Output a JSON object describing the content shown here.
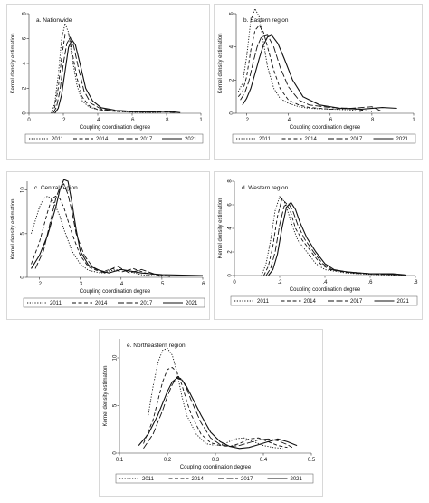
{
  "legend_labels": [
    "2011",
    "2014",
    "2017",
    "2021"
  ],
  "x_label": "Coupling coordination degree",
  "y_label": "Kernel density estimation",
  "chart_data": [
    {
      "type": "line",
      "title": "a. Nationwide",
      "xlabel": "Coupling coordination degree",
      "ylabel": "Kernel density estimation",
      "xlim": [
        0,
        1
      ],
      "ylim": [
        0,
        8
      ],
      "xticks": [
        "0",
        ".2",
        ".4",
        ".6",
        ".8",
        "1"
      ],
      "yticks": [
        "0",
        "2",
        "4",
        "6",
        "8"
      ],
      "legend": "bottom",
      "series": [
        {
          "name": "2011",
          "x": [
            0.13,
            0.15,
            0.17,
            0.19,
            0.21,
            0.23,
            0.25,
            0.28,
            0.31,
            0.35,
            0.4,
            0.5,
            0.6,
            0.7,
            0.8,
            0.85
          ],
          "y": [
            0,
            0.8,
            3,
            6,
            7.2,
            6.5,
            4.5,
            2.2,
            1,
            0.5,
            0.3,
            0.15,
            0.08,
            0.05,
            0.1,
            0.05
          ]
        },
        {
          "name": "2014",
          "x": [
            0.13,
            0.15,
            0.17,
            0.19,
            0.21,
            0.23,
            0.25,
            0.28,
            0.31,
            0.35,
            0.4,
            0.5,
            0.6,
            0.7,
            0.8,
            0.85
          ],
          "y": [
            0,
            0.5,
            2,
            4.5,
            6.3,
            6.4,
            5,
            2.8,
            1.3,
            0.6,
            0.3,
            0.15,
            0.1,
            0.08,
            0.1,
            0.05
          ]
        },
        {
          "name": "2017",
          "x": [
            0.14,
            0.16,
            0.18,
            0.2,
            0.22,
            0.24,
            0.26,
            0.29,
            0.32,
            0.36,
            0.42,
            0.5,
            0.6,
            0.7,
            0.8,
            0.85
          ],
          "y": [
            0,
            0.5,
            1.8,
            4,
            5.6,
            6.1,
            5.4,
            3.5,
            1.8,
            0.8,
            0.35,
            0.2,
            0.12,
            0.1,
            0.15,
            0.05
          ]
        },
        {
          "name": "2021",
          "x": [
            0.15,
            0.17,
            0.19,
            0.21,
            0.23,
            0.25,
            0.27,
            0.3,
            0.33,
            0.37,
            0.42,
            0.5,
            0.6,
            0.7,
            0.8,
            0.88
          ],
          "y": [
            0,
            0.4,
            1.5,
            3.4,
            5.3,
            5.9,
            5.5,
            3.8,
            2,
            1,
            0.45,
            0.25,
            0.15,
            0.12,
            0.18,
            0.05
          ]
        }
      ]
    },
    {
      "type": "line",
      "title": "b. Eastern region",
      "xlabel": "Coupling coordination degree",
      "ylabel": "Kernel density estimation",
      "xlim": [
        0.15,
        1
      ],
      "ylim": [
        0,
        6
      ],
      "xticks": [
        ".2",
        ".4",
        ".6",
        ".8",
        "1"
      ],
      "yticks": [
        "0",
        "2",
        "4",
        "6"
      ],
      "legend": "bottom",
      "series": [
        {
          "name": "2011",
          "x": [
            0.16,
            0.18,
            0.2,
            0.22,
            0.24,
            0.26,
            0.28,
            0.3,
            0.33,
            0.36,
            0.4,
            0.45,
            0.5,
            0.6,
            0.7,
            0.75
          ],
          "y": [
            1.3,
            1.8,
            3.4,
            5.6,
            6.3,
            5.8,
            4.3,
            2.8,
            1.5,
            0.9,
            0.6,
            0.4,
            0.3,
            0.25,
            0.2,
            0.1
          ]
        },
        {
          "name": "2014",
          "x": [
            0.16,
            0.18,
            0.2,
            0.22,
            0.24,
            0.26,
            0.28,
            0.3,
            0.33,
            0.36,
            0.4,
            0.45,
            0.5,
            0.6,
            0.7,
            0.8
          ],
          "y": [
            1,
            1.3,
            2.2,
            3.8,
            5,
            5.3,
            4.9,
            4,
            2.6,
            1.5,
            0.8,
            0.5,
            0.35,
            0.25,
            0.3,
            0.1
          ]
        },
        {
          "name": "2017",
          "x": [
            0.17,
            0.19,
            0.21,
            0.23,
            0.25,
            0.27,
            0.3,
            0.33,
            0.36,
            0.4,
            0.45,
            0.5,
            0.6,
            0.7,
            0.8,
            0.85
          ],
          "y": [
            0.8,
            1.2,
            1.9,
            3,
            4,
            4.6,
            4.7,
            4,
            2.8,
            1.6,
            0.8,
            0.5,
            0.35,
            0.3,
            0.4,
            0.1
          ]
        },
        {
          "name": "2021",
          "x": [
            0.18,
            0.2,
            0.22,
            0.24,
            0.26,
            0.28,
            0.3,
            0.32,
            0.35,
            0.38,
            0.42,
            0.47,
            0.55,
            0.65,
            0.75,
            0.85,
            0.92
          ],
          "y": [
            0.5,
            0.9,
            1.5,
            2.4,
            3.3,
            4.1,
            4.6,
            4.7,
            4.2,
            3.3,
            2,
            1,
            0.5,
            0.3,
            0.25,
            0.35,
            0.3
          ]
        }
      ]
    },
    {
      "type": "line",
      "title": "c. Central region",
      "xlabel": "Coupling coordination degree",
      "ylabel": "Kernel density estimation",
      "xlim": [
        0.17,
        0.6
      ],
      "ylim": [
        0,
        11
      ],
      "xticks": [
        ".2",
        ".3",
        ".4",
        ".5",
        ".6"
      ],
      "yticks": [
        "0",
        "5",
        "10"
      ],
      "legend": "bottom",
      "series": [
        {
          "name": "2011",
          "x": [
            0.18,
            0.19,
            0.2,
            0.21,
            0.22,
            0.23,
            0.24,
            0.25,
            0.26,
            0.28,
            0.3,
            0.32,
            0.35,
            0.38,
            0.4,
            0.45,
            0.5
          ],
          "y": [
            5,
            6.5,
            8,
            9,
            9.3,
            9,
            8.1,
            7,
            5.5,
            3,
            1.5,
            0.8,
            0.5,
            0.8,
            0.9,
            0.3,
            0.1
          ]
        },
        {
          "name": "2014",
          "x": [
            0.18,
            0.2,
            0.22,
            0.23,
            0.24,
            0.25,
            0.26,
            0.27,
            0.28,
            0.3,
            0.32,
            0.35,
            0.38,
            0.4,
            0.43,
            0.46,
            0.5
          ],
          "y": [
            1.5,
            4,
            7.5,
            9,
            9.3,
            9,
            8,
            6.5,
            5,
            2.5,
            1.2,
            0.6,
            1,
            0.6,
            1,
            0.5,
            0.2
          ]
        },
        {
          "name": "2017",
          "x": [
            0.19,
            0.21,
            0.23,
            0.24,
            0.25,
            0.26,
            0.27,
            0.28,
            0.29,
            0.31,
            0.33,
            0.36,
            0.39,
            0.42,
            0.45,
            0.48,
            0.52
          ],
          "y": [
            1,
            3,
            7,
            9,
            10.3,
            10.7,
            9.5,
            7.5,
            5,
            2.5,
            1.2,
            0.5,
            1.3,
            0.5,
            0.9,
            0.4,
            0.1
          ]
        },
        {
          "name": "2021",
          "x": [
            0.18,
            0.2,
            0.22,
            0.24,
            0.25,
            0.26,
            0.27,
            0.28,
            0.29,
            0.3,
            0.32,
            0.34,
            0.37,
            0.4,
            0.45,
            0.5,
            0.55,
            0.6
          ],
          "y": [
            1,
            2.5,
            4.8,
            8,
            10,
            11.2,
            11,
            8.5,
            5.5,
            3,
            1.4,
            0.9,
            0.5,
            0.9,
            0.5,
            0.3,
            0.25,
            0.2
          ]
        }
      ]
    },
    {
      "type": "line",
      "title": "d. Western region",
      "xlabel": "Coupling coordination degree",
      "ylabel": "Kernel density estimation",
      "xlim": [
        0,
        0.8
      ],
      "ylim": [
        0,
        8
      ],
      "xticks": [
        "0",
        ".2",
        ".4",
        ".6",
        ".8"
      ],
      "yticks": [
        "0",
        "2",
        "4",
        "6",
        "8"
      ],
      "legend": "bottom",
      "series": [
        {
          "name": "2011",
          "x": [
            0.12,
            0.14,
            0.16,
            0.18,
            0.2,
            0.22,
            0.24,
            0.26,
            0.28,
            0.32,
            0.36,
            0.4,
            0.5,
            0.6,
            0.7,
            0.75
          ],
          "y": [
            0,
            1,
            3,
            5.5,
            6.7,
            6.3,
            5.2,
            4,
            3,
            2,
            1,
            0.5,
            0.2,
            0.1,
            0.05,
            0.05
          ]
        },
        {
          "name": "2014",
          "x": [
            0.13,
            0.15,
            0.17,
            0.19,
            0.21,
            0.23,
            0.25,
            0.27,
            0.3,
            0.34,
            0.38,
            0.42,
            0.5,
            0.6,
            0.7,
            0.75
          ],
          "y": [
            0,
            0.8,
            2.5,
            5,
            6.5,
            6.1,
            5.3,
            4,
            3,
            2,
            1,
            0.5,
            0.25,
            0.12,
            0.08,
            0.05
          ]
        },
        {
          "name": "2017",
          "x": [
            0.14,
            0.16,
            0.18,
            0.2,
            0.22,
            0.24,
            0.26,
            0.28,
            0.31,
            0.35,
            0.39,
            0.43,
            0.5,
            0.6,
            0.7,
            0.75
          ],
          "y": [
            0,
            0.6,
            2,
            4.3,
            5.9,
            6.1,
            5.4,
            4.3,
            3.1,
            2,
            1,
            0.5,
            0.3,
            0.15,
            0.1,
            0.05
          ]
        },
        {
          "name": "2021",
          "x": [
            0.15,
            0.17,
            0.19,
            0.21,
            0.23,
            0.25,
            0.27,
            0.29,
            0.32,
            0.36,
            0.4,
            0.44,
            0.5,
            0.6,
            0.7,
            0.76
          ],
          "y": [
            0,
            0.5,
            1.8,
            4,
            5.8,
            6.2,
            5.6,
            4.5,
            3.2,
            2,
            1,
            0.5,
            0.3,
            0.15,
            0.15,
            0.05
          ]
        }
      ]
    },
    {
      "type": "line",
      "title": "e. Northeastern region",
      "xlabel": "Coupling coordination degree",
      "ylabel": "Kernel density estimation",
      "xlim": [
        0.1,
        0.5
      ],
      "ylim": [
        0,
        12
      ],
      "xticks": [
        "0.1",
        "0.2",
        "0.3",
        "0.4",
        "0.5"
      ],
      "yticks": [
        "0",
        "5",
        "10"
      ],
      "legend": "bottom",
      "series": [
        {
          "name": "2011",
          "x": [
            0.16,
            0.17,
            0.18,
            0.19,
            0.2,
            0.21,
            0.22,
            0.23,
            0.24,
            0.26,
            0.28,
            0.3,
            0.32,
            0.34,
            0.36,
            0.38,
            0.4,
            0.42,
            0.44
          ],
          "y": [
            4,
            7,
            9.5,
            10.8,
            11,
            10.3,
            8.5,
            6,
            4,
            2,
            1,
            0.8,
            1,
            1.5,
            1.6,
            1.2,
            0.8,
            0.6,
            0.5
          ]
        },
        {
          "name": "2014",
          "x": [
            0.15,
            0.17,
            0.19,
            0.2,
            0.21,
            0.22,
            0.23,
            0.24,
            0.25,
            0.27,
            0.29,
            0.31,
            0.33,
            0.35,
            0.37,
            0.39,
            0.41,
            0.43,
            0.45
          ],
          "y": [
            1,
            3.5,
            7.5,
            8.8,
            9,
            8.5,
            7.2,
            5.5,
            4,
            2,
            1.1,
            0.8,
            0.7,
            1,
            1.5,
            1.6,
            1.2,
            0.8,
            0.6
          ]
        },
        {
          "name": "2017",
          "x": [
            0.15,
            0.17,
            0.19,
            0.2,
            0.21,
            0.22,
            0.23,
            0.24,
            0.25,
            0.27,
            0.29,
            0.31,
            0.33,
            0.35,
            0.37,
            0.39,
            0.41,
            0.43,
            0.45,
            0.46
          ],
          "y": [
            0.5,
            2,
            4.5,
            6,
            7.2,
            8,
            7.8,
            6.8,
            5.5,
            3.2,
            1.6,
            0.9,
            0.7,
            0.8,
            1.1,
            1.4,
            1.5,
            1.3,
            0.9,
            0.6
          ]
        },
        {
          "name": "2021",
          "x": [
            0.14,
            0.16,
            0.18,
            0.2,
            0.21,
            0.22,
            0.23,
            0.24,
            0.25,
            0.27,
            0.29,
            0.31,
            0.33,
            0.35,
            0.37,
            0.39,
            0.41,
            0.43,
            0.45,
            0.47
          ],
          "y": [
            0.8,
            2,
            4,
            6.5,
            7.5,
            7.9,
            7.7,
            7,
            6,
            4,
            2.2,
            1.2,
            0.7,
            0.5,
            0.6,
            0.9,
            1.2,
            1.5,
            1.2,
            0.8
          ]
        }
      ]
    }
  ]
}
